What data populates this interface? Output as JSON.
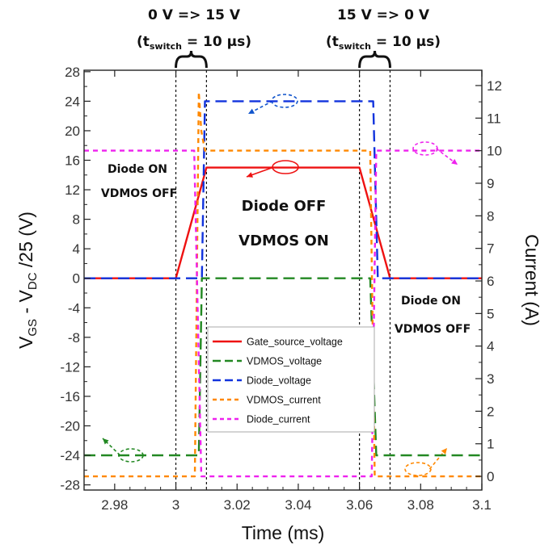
{
  "chart_data": {
    "type": "line",
    "xlabel": "Time (ms)",
    "ylabel_left": {
      "main": "V",
      "sub1": "GS",
      "mid": " - V",
      "sub2": "DC",
      "tail": " /25 (V)"
    },
    "ylabel_right": "Current (A)",
    "xlim": [
      2.97,
      3.1
    ],
    "ylim_left": [
      -28.7,
      28.2
    ],
    "ylim_right": [
      -0.42,
      12.47
    ],
    "x_ticks": [
      2.98,
      3.0,
      3.02,
      3.04,
      3.06,
      3.08,
      3.1
    ],
    "x_tick_labels": [
      "2.98",
      "3",
      "3.02",
      "3.04",
      "3.06",
      "3.08",
      "3.1"
    ],
    "y_ticks_left": [
      28,
      24,
      20,
      16,
      12,
      8,
      4,
      0,
      -4,
      -8,
      -12,
      -16,
      -20,
      -24,
      -28
    ],
    "y_tick_labels_left": [
      "28",
      "24",
      "20",
      "16",
      "12",
      "8",
      "4",
      "0",
      "-4",
      "-8",
      "-12",
      "-16",
      "-20",
      "-24",
      "-28"
    ],
    "y_ticks_right": [
      0,
      1,
      2,
      3,
      4,
      5,
      6,
      7,
      8,
      9,
      10,
      11,
      12
    ],
    "y_tick_labels_right": [
      "0",
      "1",
      "2",
      "3",
      "4",
      "5",
      "6",
      "7",
      "8",
      "9",
      "10",
      "11",
      "12"
    ],
    "grid": false,
    "legend_position": "lower-center",
    "series": [
      {
        "name": "Gate_source_voltage",
        "color": "#ee1111",
        "dash": "solid",
        "axis": "left",
        "x": [
          2.97,
          3.0,
          3.01,
          3.06,
          3.07,
          3.1
        ],
        "y": [
          0,
          0,
          15,
          15,
          0,
          0
        ]
      },
      {
        "name": "VDMOS_voltage",
        "color": "#228822",
        "dash": "long",
        "axis": "left",
        "x": [
          2.97,
          3.0075,
          3.0085,
          3.0635,
          3.0655,
          3.1
        ],
        "y": [
          -24,
          -24,
          0,
          0,
          -24,
          -24
        ]
      },
      {
        "name": "Diode_voltage",
        "color": "#1133dd",
        "dash": "long",
        "axis": "left",
        "x": [
          2.97,
          3.0085,
          3.0095,
          3.0645,
          3.066,
          3.1
        ],
        "y": [
          0,
          0,
          24,
          24,
          0,
          0
        ]
      },
      {
        "name": "VDMOS_current",
        "color": "#ff8800",
        "dash": "short",
        "axis": "right",
        "x": [
          2.97,
          3.0062,
          3.0075,
          3.0083,
          3.0095,
          3.0635,
          3.065,
          3.1
        ],
        "y": [
          0,
          0,
          11.8,
          10.6,
          10,
          10,
          0,
          0
        ]
      },
      {
        "name": "Diode_current",
        "color": "#ee22ee",
        "dash": "short",
        "axis": "right",
        "x": [
          2.97,
          3.006,
          3.0083,
          3.064,
          3.0655,
          3.1
        ],
        "y": [
          10,
          10,
          0,
          0,
          10,
          10
        ]
      }
    ],
    "annotations": {
      "top_left_line1": "0 V => 15 V",
      "top_left_line2": {
        "pre": "(t",
        "sub": "switch",
        "post": " = 10 µs)"
      },
      "top_right_line1": "15 V => 0 V",
      "top_right_line2": {
        "pre": "(t",
        "sub": "switch",
        "post": " = 10 µs)"
      },
      "left_state": [
        "Diode ON",
        "VDMOS OFF"
      ],
      "center_state": [
        "Diode OFF",
        "VDMOS ON"
      ],
      "right_state": [
        "Diode ON",
        "VDMOS OFF"
      ]
    },
    "switch_markers_x": [
      3.0,
      3.01,
      3.06,
      3.07
    ]
  }
}
